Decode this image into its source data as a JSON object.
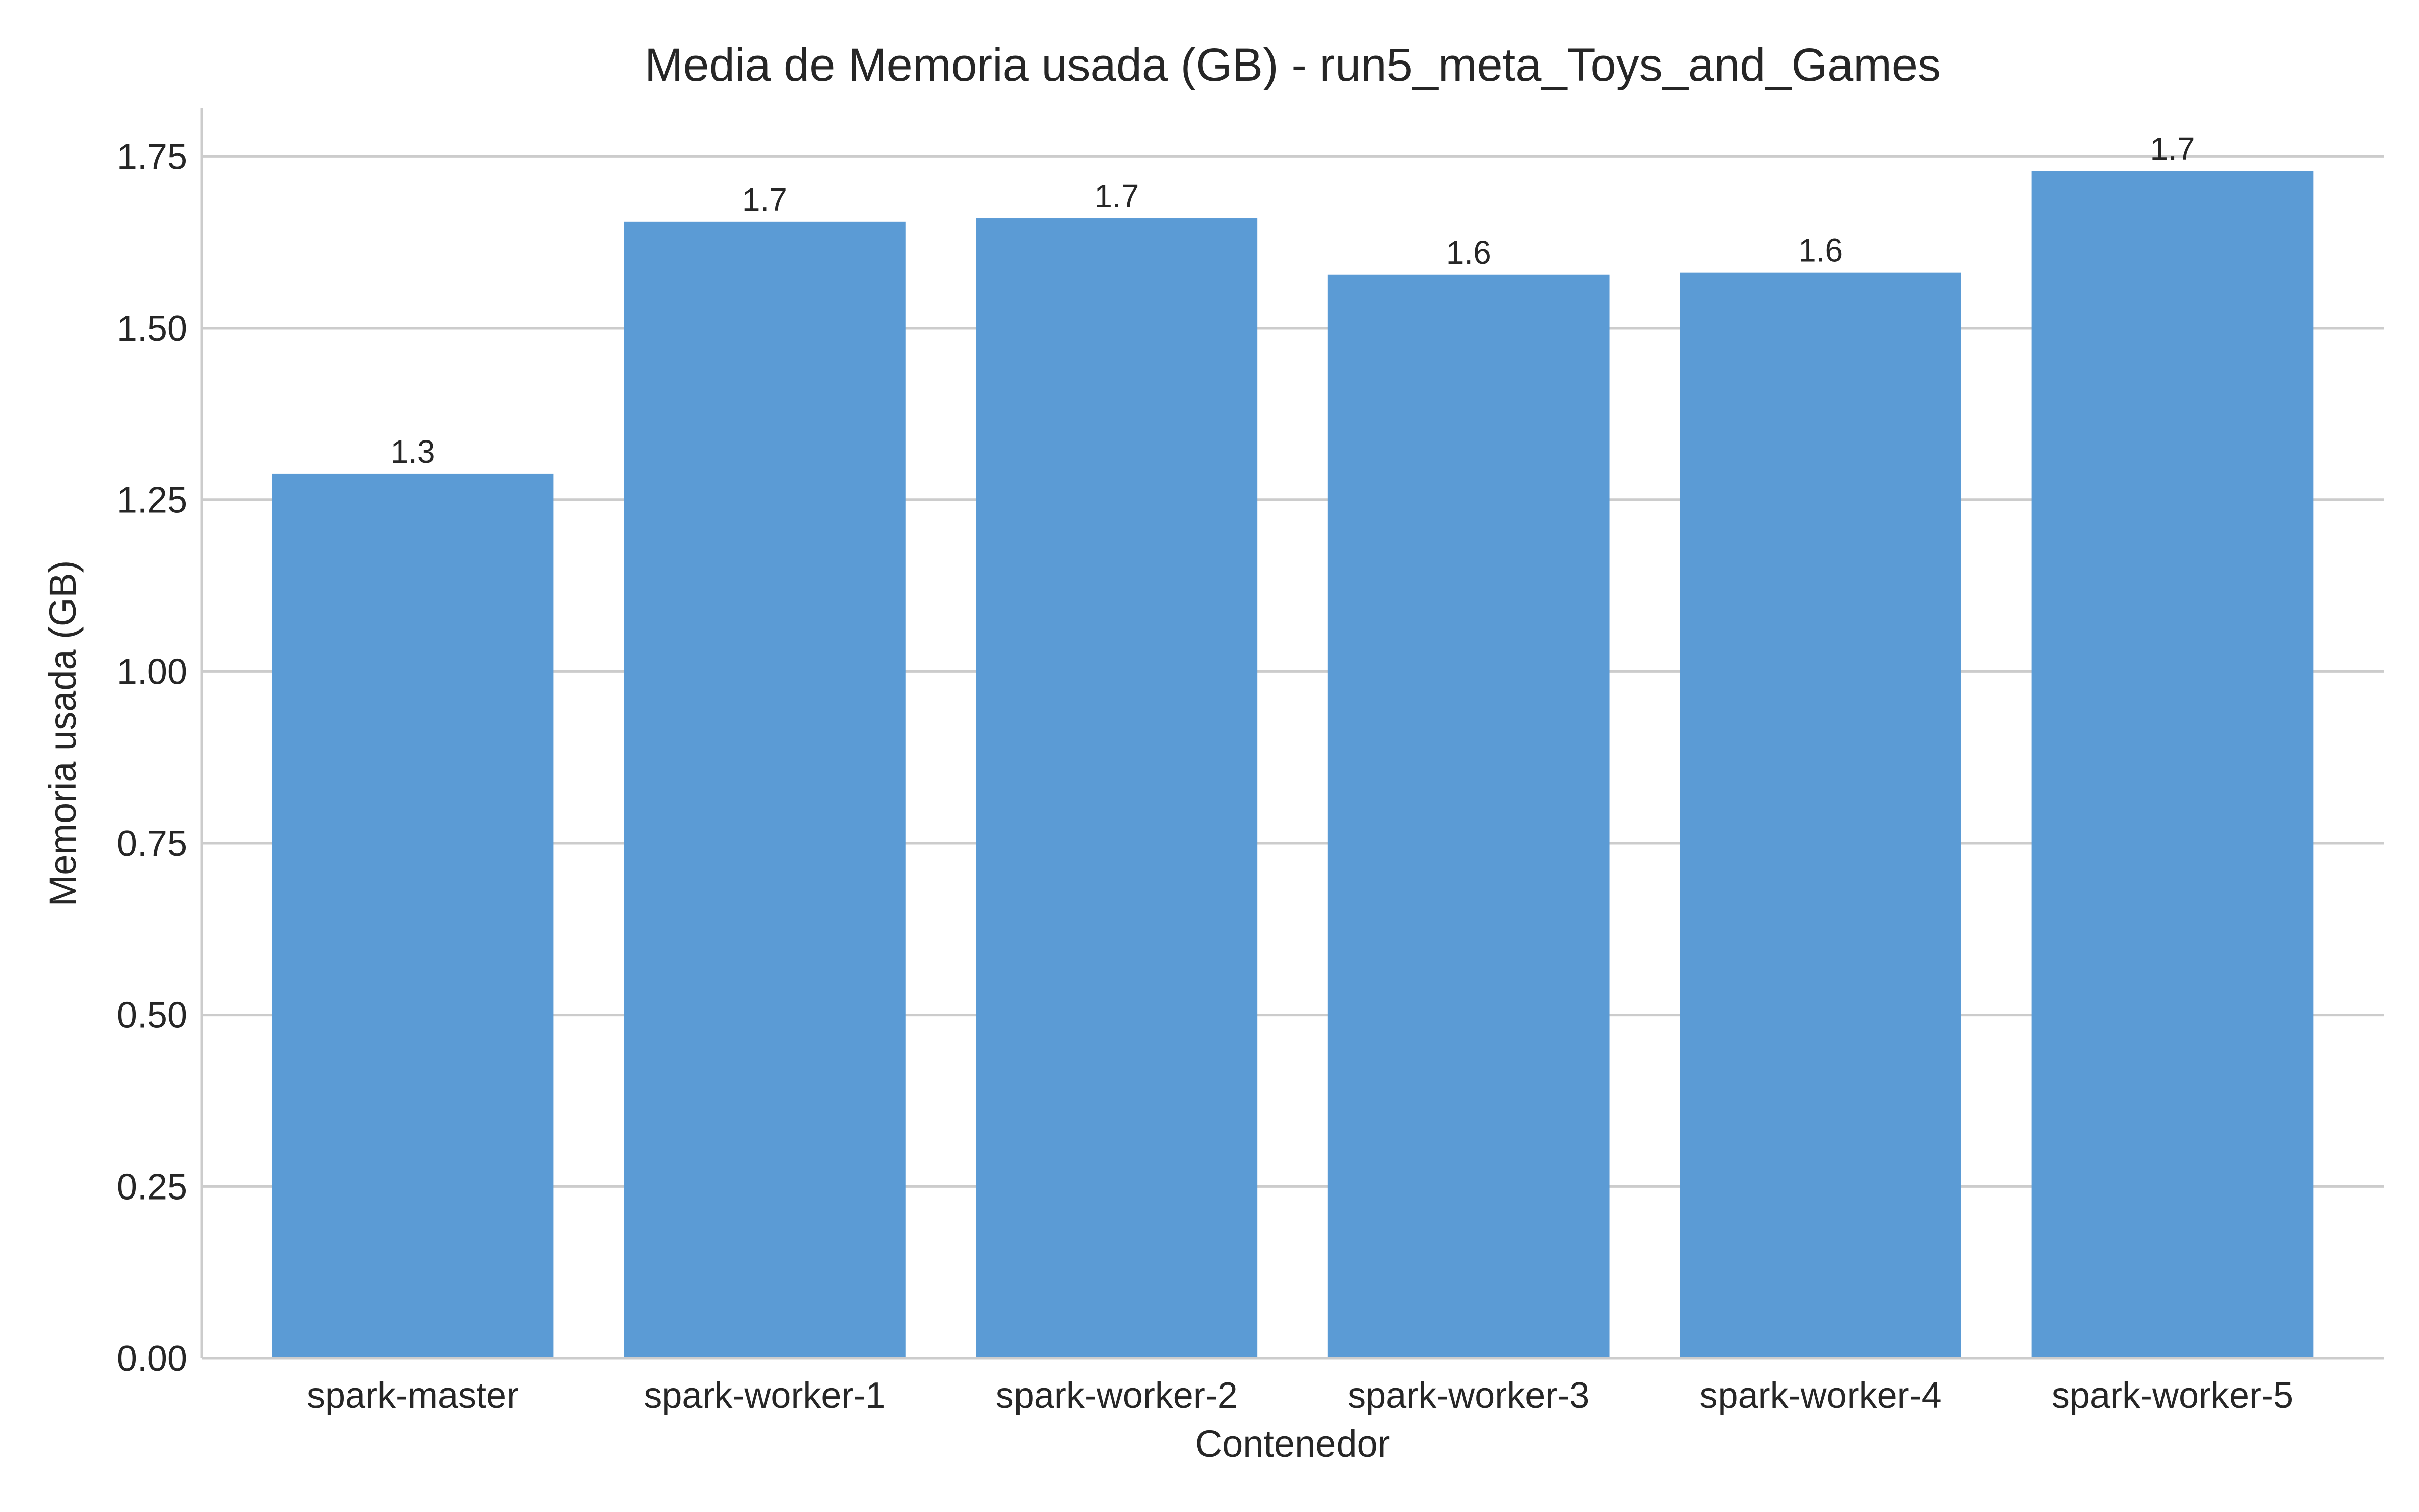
{
  "chart_data": {
    "type": "bar",
    "title": "Media de Memoria usada (GB) - run5_meta_Toys_and_Games",
    "xlabel": "Contenedor",
    "ylabel": "Memoria usada (GB)",
    "categories": [
      "spark-master",
      "spark-worker-1",
      "spark-worker-2",
      "spark-worker-3",
      "spark-worker-4",
      "spark-worker-5"
    ],
    "values": [
      1.288,
      1.655,
      1.66,
      1.578,
      1.581,
      1.729
    ],
    "data_labels": [
      "1.3",
      "1.7",
      "1.7",
      "1.6",
      "1.6",
      "1.7"
    ],
    "y_ticks": [
      "0.00",
      "0.25",
      "0.50",
      "0.75",
      "1.00",
      "1.25",
      "1.50",
      "1.75"
    ],
    "ylim": [
      0,
      1.82
    ],
    "grid": "horizontal",
    "legend": "none",
    "colors": {
      "bar": "#5b9bd5",
      "grid": "#cccccc",
      "text": "#262626"
    }
  }
}
